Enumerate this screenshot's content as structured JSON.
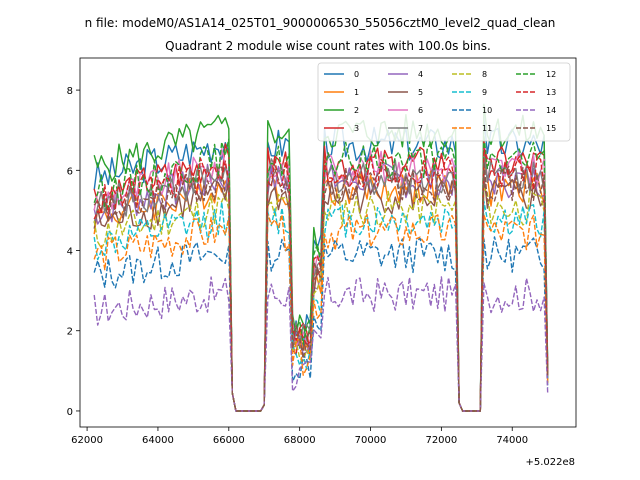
{
  "window": {
    "suptitle": "n file: modeM0/AS1A14_025T01_9000006530_55056cztM0_level2_quad_clean",
    "title": "Quadrant 2 module wise count rates with 100.0s bins."
  },
  "chart_data": {
    "type": "line",
    "title": "Quadrant 2 module wise count rates with 100.0s bins.",
    "suptitle": "n file: modeM0/AS1A14_025T01_9000006530_55056cztM0_level2_quad_clean",
    "xlabel": "",
    "ylabel": "",
    "x_offset_label": "+5.022e8",
    "xlim": [
      61800,
      75800
    ],
    "ylim": [
      -0.4,
      8.8
    ],
    "xticks": [
      62000,
      64000,
      66000,
      68000,
      70000,
      72000,
      74000
    ],
    "yticks": [
      0,
      2,
      4,
      6,
      8
    ],
    "x_bin_seconds": 100.0,
    "x_start": 62200,
    "x_end": 75000,
    "grid": false,
    "legend_placement": "top-right",
    "legend_columns": 4,
    "gaps": [
      [
        66100,
        67000
      ],
      [
        72500,
        73200
      ]
    ],
    "series": [
      {
        "name": "0",
        "color": "#1f77b4",
        "dash": "solid",
        "level": 6.65
      },
      {
        "name": "1",
        "color": "#ff7f0e",
        "dash": "solid",
        "level": 5.55
      },
      {
        "name": "2",
        "color": "#2ca02c",
        "dash": "solid",
        "level": 6.95
      },
      {
        "name": "3",
        "color": "#d62728",
        "dash": "solid",
        "level": 6.15
      },
      {
        "name": "4",
        "color": "#9467bd",
        "dash": "solid",
        "level": 5.75
      },
      {
        "name": "5",
        "color": "#8c564b",
        "dash": "solid",
        "level": 5.35
      },
      {
        "name": "6",
        "color": "#e377c2",
        "dash": "solid",
        "level": 6.05
      },
      {
        "name": "7",
        "color": "#7f7f7f",
        "dash": "solid",
        "level": 5.85
      },
      {
        "name": "8",
        "color": "#bcbd22",
        "dash": "dashed",
        "level": 5.05
      },
      {
        "name": "9",
        "color": "#17becf",
        "dash": "dashed",
        "level": 4.75
      },
      {
        "name": "10",
        "color": "#1f77b4",
        "dash": "dashed",
        "level": 3.9
      },
      {
        "name": "11",
        "color": "#ff7f0e",
        "dash": "dashed",
        "level": 4.45
      },
      {
        "name": "12",
        "color": "#2ca02c",
        "dash": "dashed",
        "level": 6.25
      },
      {
        "name": "13",
        "color": "#d62728",
        "dash": "dashed",
        "level": 5.95
      },
      {
        "name": "14",
        "color": "#9467bd",
        "dash": "dashed",
        "level": 2.9
      },
      {
        "name": "15",
        "color": "#8c564b",
        "dash": "dashed",
        "level": 5.65
      }
    ]
  }
}
